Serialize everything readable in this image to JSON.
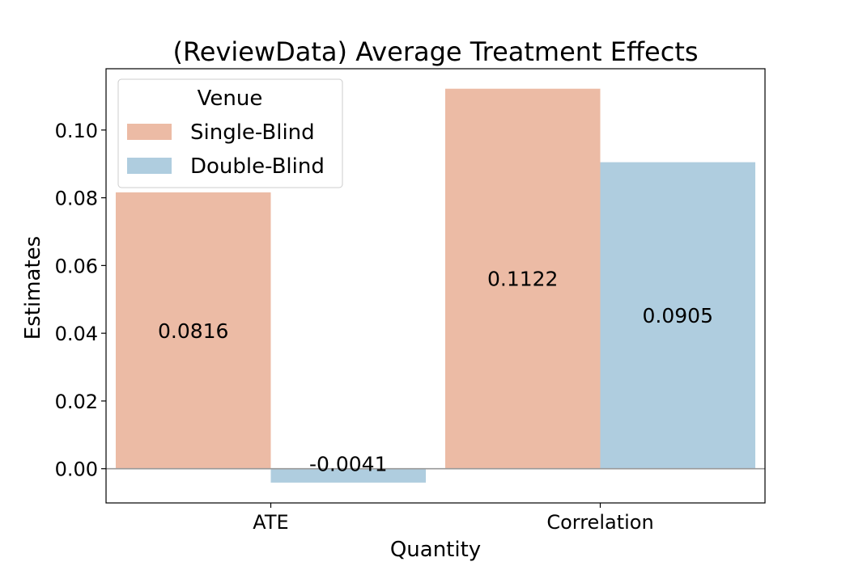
{
  "chart_data": {
    "type": "bar",
    "title": "(ReviewData) Average Treatment Effects",
    "xlabel": "Quantity",
    "ylabel": "Estimates",
    "categories": [
      "ATE",
      "Correlation"
    ],
    "series": [
      {
        "name": "Single-Blind",
        "values": [
          0.0816,
          0.1122
        ],
        "labels": [
          "0.0816",
          "0.1122"
        ],
        "color": "#ecbba5"
      },
      {
        "name": "Double-Blind",
        "values": [
          -0.0041,
          0.0905
        ],
        "labels": [
          "-0.0041",
          "0.0905"
        ],
        "color": "#afcddf"
      }
    ],
    "ylim": [
      -0.0101,
      0.1181
    ],
    "yticks": [
      0.0,
      0.02,
      0.04,
      0.06,
      0.08,
      0.1
    ],
    "ytick_labels": [
      "0.00",
      "0.02",
      "0.04",
      "0.06",
      "0.08",
      "0.10"
    ],
    "zero_line": true,
    "grid": false,
    "legend": {
      "title": "Venue",
      "placement": "top-left"
    }
  }
}
